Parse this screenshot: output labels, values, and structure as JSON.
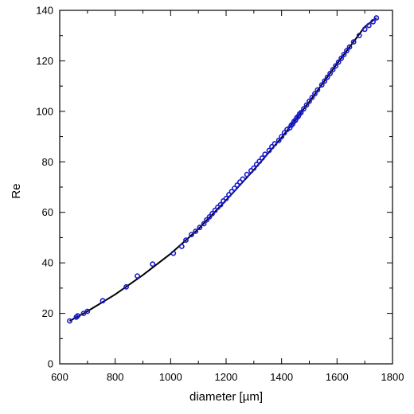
{
  "chart_data": {
    "type": "scatter",
    "xlabel": "diameter [µm]",
    "ylabel": "Re",
    "xlim": [
      600,
      1800
    ],
    "ylim": [
      0,
      140
    ],
    "xticks": [
      600,
      800,
      1000,
      1200,
      1400,
      1600,
      1800
    ],
    "yticks": [
      0,
      20,
      40,
      60,
      80,
      100,
      120,
      140
    ],
    "grid": false,
    "legend": "none",
    "colors": {
      "points": "#1a1ad0",
      "fit_line": "#000000"
    },
    "series": [
      {
        "kind": "points",
        "x": [
          636,
          660,
          665,
          686,
          700,
          755,
          840,
          880,
          935,
          1010,
          1040,
          1055,
          1075,
          1090,
          1105,
          1120,
          1130,
          1140,
          1150,
          1160,
          1170,
          1180,
          1190,
          1200,
          1210,
          1220,
          1230,
          1240,
          1250,
          1260,
          1275,
          1290,
          1300,
          1310,
          1320,
          1330,
          1340,
          1355,
          1365,
          1375,
          1390,
          1400,
          1410,
          1420,
          1430,
          1435,
          1440,
          1445,
          1450,
          1455,
          1460,
          1465,
          1470,
          1480,
          1490,
          1500,
          1510,
          1520,
          1530,
          1545,
          1555,
          1565,
          1575,
          1585,
          1595,
          1605,
          1615,
          1625,
          1635,
          1645,
          1660,
          1680,
          1700,
          1715,
          1730,
          1742
        ],
        "y": [
          17.0,
          18.5,
          19.0,
          20.0,
          20.8,
          25.0,
          30.5,
          34.8,
          39.5,
          43.8,
          46.5,
          49.0,
          51.2,
          52.5,
          54.0,
          55.5,
          57.0,
          58.2,
          59.5,
          60.8,
          62.0,
          63.0,
          64.5,
          65.5,
          67.0,
          68.2,
          69.5,
          70.8,
          72.0,
          73.2,
          75.0,
          76.5,
          77.5,
          79.0,
          80.2,
          81.5,
          83.0,
          84.5,
          86.0,
          87.2,
          88.5,
          90.0,
          91.5,
          92.8,
          93.5,
          94.5,
          95.0,
          96.0,
          96.5,
          97.5,
          98.0,
          99.0,
          99.5,
          101.0,
          102.5,
          104.0,
          105.5,
          107.0,
          108.5,
          110.5,
          112.0,
          113.5,
          115.0,
          116.5,
          118.0,
          119.5,
          121.0,
          122.5,
          124.0,
          125.5,
          127.5,
          130.0,
          132.5,
          134.0,
          135.5,
          137.0
        ]
      },
      {
        "kind": "fit_line",
        "x": [
          636,
          700,
          800,
          900,
          1000,
          1100,
          1200,
          1300,
          1400,
          1500,
          1600,
          1700,
          1742
        ],
        "y": [
          17.0,
          20.8,
          27.5,
          35.2,
          43.6,
          53.4,
          64.8,
          76.8,
          89.6,
          103.8,
          118.8,
          133.5,
          137.0
        ]
      }
    ]
  }
}
